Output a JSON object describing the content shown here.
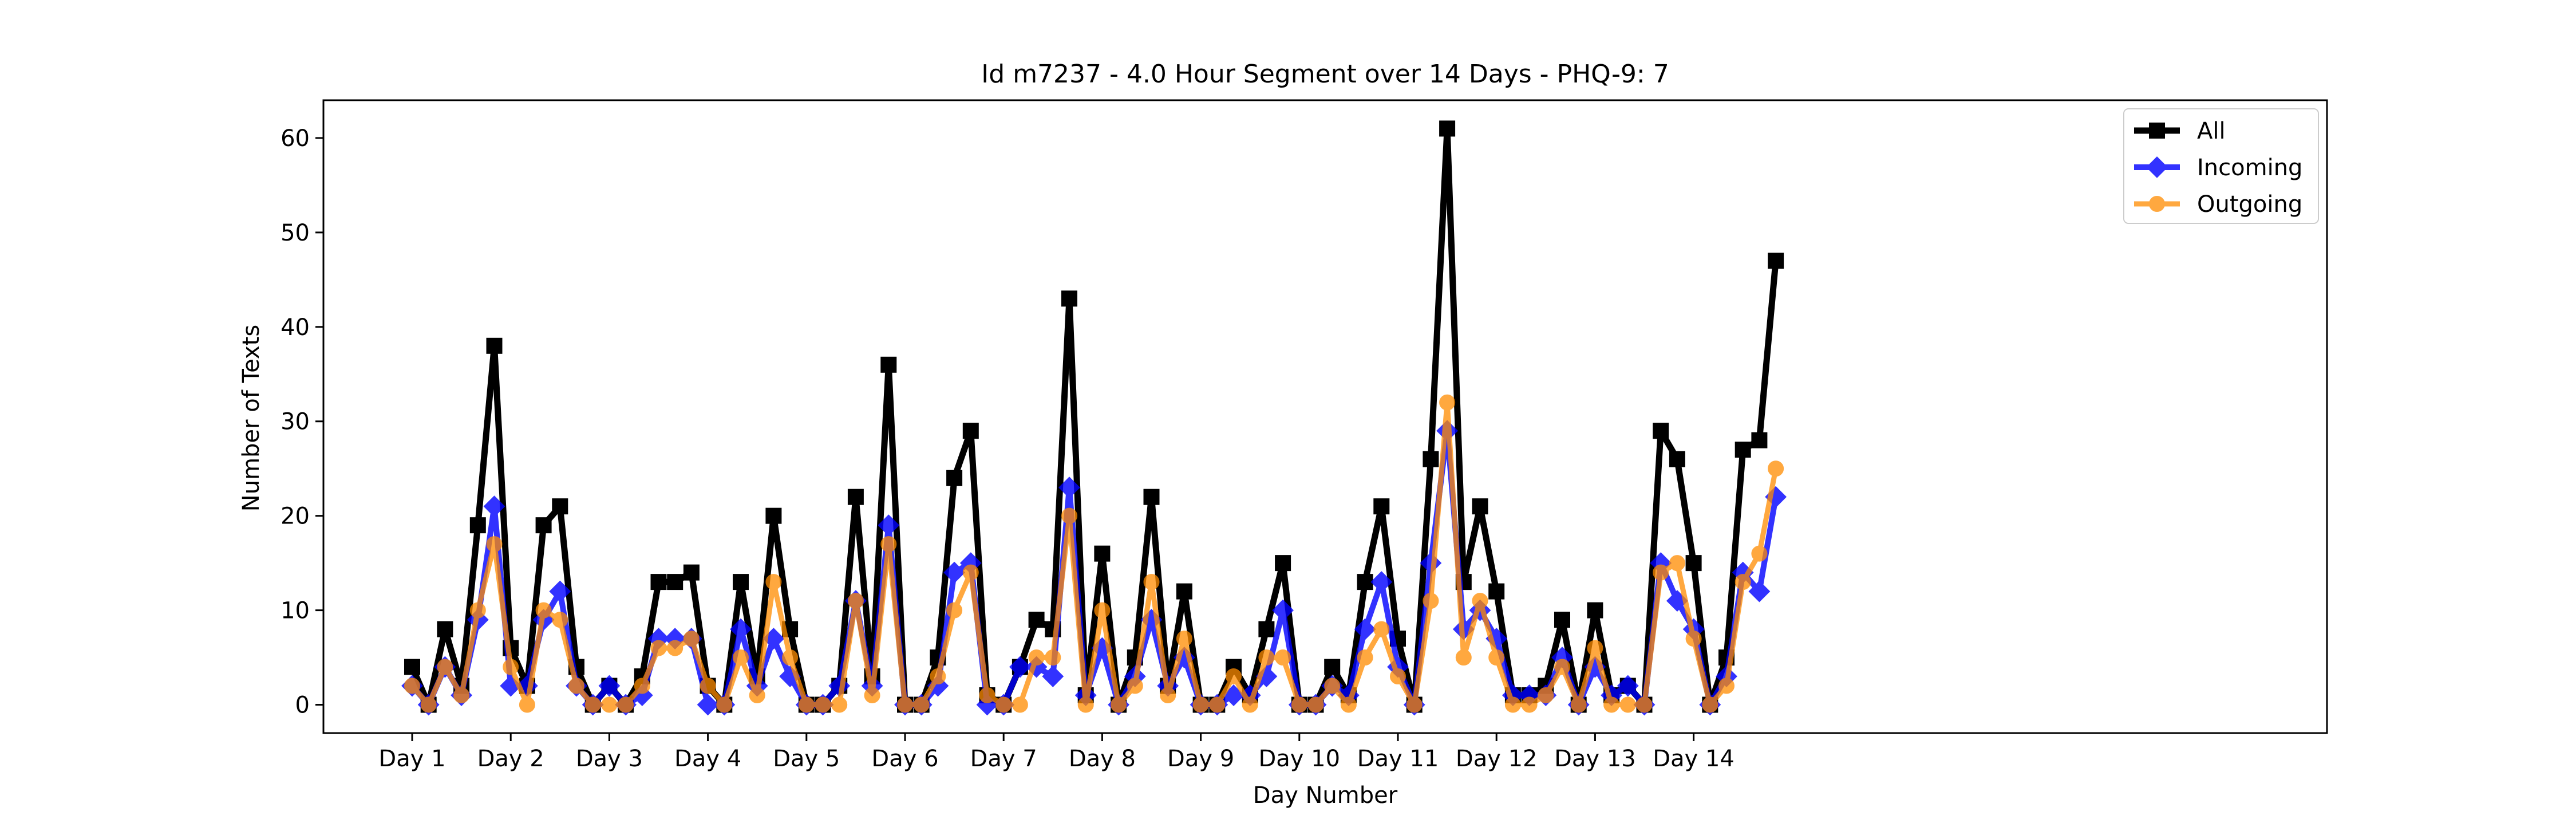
{
  "chart_data": {
    "type": "line",
    "title": "Id m7237 - 4.0 Hour Segment over 14 Days - PHQ-9: 7",
    "xlabel": "Day Number",
    "ylabel": "Number of Texts",
    "x_tick_labels": [
      "Day 1",
      "Day 2",
      "Day 3",
      "Day 4",
      "Day 5",
      "Day 6",
      "Day 7",
      "Day 8",
      "Day 9",
      "Day 10",
      "Day 11",
      "Day 12",
      "Day 13",
      "Day 14"
    ],
    "y_ticks": [
      0,
      10,
      20,
      30,
      40,
      50,
      60
    ],
    "ylim": [
      -3,
      64
    ],
    "grid": false,
    "legend_position": "top-right",
    "x": [
      0,
      1,
      2,
      3,
      4,
      5,
      6,
      7,
      8,
      9,
      10,
      11,
      12,
      13,
      14,
      15,
      16,
      17,
      18,
      19,
      20,
      21,
      22,
      23,
      24,
      25,
      26,
      27,
      28,
      29,
      30,
      31,
      32,
      33,
      34,
      35,
      36,
      37,
      38,
      39,
      40,
      41,
      42,
      43,
      44,
      45,
      46,
      47,
      48,
      49,
      50,
      51,
      52,
      53,
      54,
      55,
      56,
      57,
      58,
      59,
      60,
      61,
      62,
      63,
      64,
      65,
      66,
      67,
      68,
      69,
      70,
      71,
      72,
      73,
      74,
      75,
      76,
      77,
      78,
      79,
      80,
      81,
      82,
      83
    ],
    "series": [
      {
        "name": "All",
        "color": "#000000",
        "marker": "square",
        "values": [
          4,
          0,
          8,
          2,
          19,
          38,
          6,
          2,
          19,
          21,
          4,
          0,
          2,
          0,
          3,
          13,
          13,
          14,
          2,
          0,
          13,
          3,
          20,
          8,
          0,
          0,
          2,
          22,
          3,
          36,
          0,
          0,
          5,
          24,
          29,
          1,
          0,
          4,
          9,
          8,
          43,
          1,
          16,
          0,
          5,
          22,
          2,
          12,
          0,
          0,
          4,
          1,
          8,
          15,
          0,
          0,
          4,
          1,
          13,
          21,
          7,
          0,
          26,
          61,
          13,
          21,
          12,
          1,
          1,
          2,
          9,
          0,
          10,
          1,
          2,
          0,
          29,
          26,
          15,
          0,
          5,
          27,
          28,
          47
        ]
      },
      {
        "name": "Incoming",
        "color": "#0000ff",
        "marker": "diamond",
        "values": [
          2,
          0,
          4,
          1,
          9,
          21,
          2,
          2,
          9,
          12,
          2,
          0,
          2,
          0,
          1,
          7,
          7,
          7,
          0,
          0,
          8,
          2,
          7,
          3,
          0,
          0,
          2,
          11,
          2,
          19,
          0,
          0,
          2,
          14,
          15,
          0,
          0,
          4,
          4,
          3,
          23,
          1,
          6,
          0,
          3,
          9,
          2,
          5,
          0,
          0,
          1,
          1,
          3,
          10,
          0,
          0,
          2,
          1,
          8,
          13,
          4,
          0,
          15,
          29,
          8,
          10,
          7,
          1,
          1,
          1,
          5,
          0,
          4,
          1,
          2,
          0,
          15,
          11,
          8,
          0,
          3,
          14,
          12,
          22
        ]
      },
      {
        "name": "Outgoing",
        "color": "#ff8c00",
        "marker": "circle",
        "values": [
          2,
          0,
          4,
          1,
          10,
          17,
          4,
          0,
          10,
          9,
          2,
          0,
          0,
          0,
          2,
          6,
          6,
          7,
          2,
          0,
          5,
          1,
          13,
          5,
          0,
          0,
          0,
          11,
          1,
          17,
          0,
          0,
          3,
          10,
          14,
          1,
          0,
          0,
          5,
          5,
          20,
          0,
          10,
          0,
          2,
          13,
          1,
          7,
          0,
          0,
          3,
          0,
          5,
          5,
          0,
          0,
          2,
          0,
          5,
          8,
          3,
          0,
          11,
          32,
          5,
          11,
          5,
          0,
          0,
          1,
          4,
          0,
          6,
          0,
          0,
          0,
          14,
          15,
          7,
          0,
          2,
          13,
          16,
          25
        ]
      }
    ]
  }
}
